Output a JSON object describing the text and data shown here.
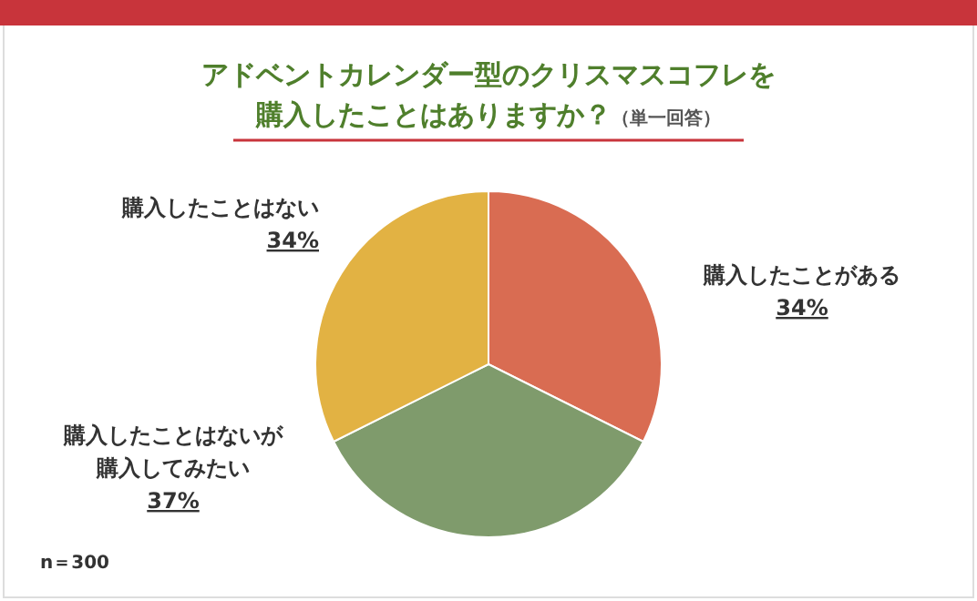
{
  "chart_data": {
    "type": "pie",
    "title": "アドベントカレンダー型のクリスマスコフレを購入したことはありますか？",
    "subtitle": "（単一回答）",
    "categories": [
      "購入したことがある",
      "購入したことはないが購入してみたい",
      "購入したことはない"
    ],
    "values": [
      34,
      37,
      34
    ],
    "colors": [
      "#d96c52",
      "#7f9b6c",
      "#e2b243"
    ],
    "value_labels": [
      "34%",
      "37%",
      "34%"
    ],
    "annotations": [
      "n＝300"
    ],
    "legend": false
  }
}
